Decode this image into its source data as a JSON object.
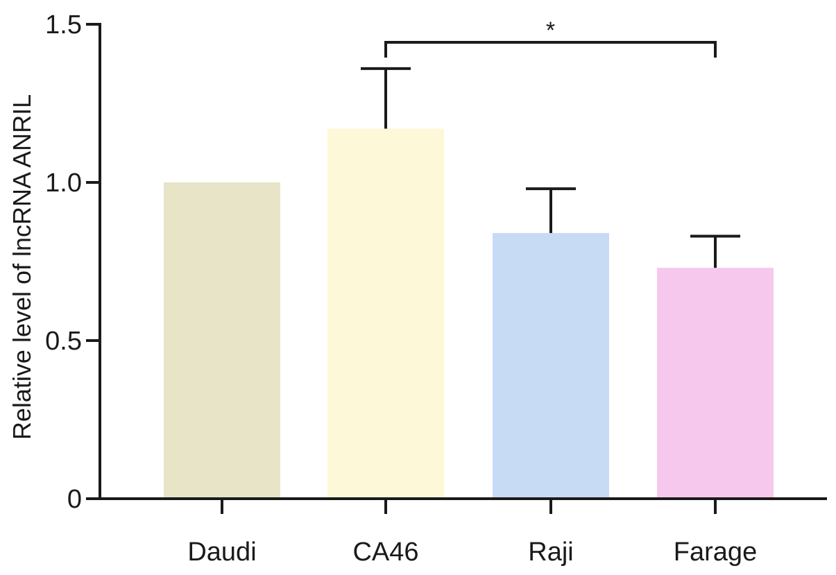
{
  "chart_data": {
    "type": "bar",
    "title": "",
    "xlabel": "",
    "ylabel": "Relative level of lncRNA ANRIL",
    "ylim": [
      0,
      1.5
    ],
    "yticks": [
      0,
      0.5,
      1.0,
      1.5
    ],
    "ytick_labels": [
      "0",
      "0.5",
      "1.0",
      "1.5"
    ],
    "categories": [
      "Daudi",
      "CA46",
      "Raji",
      "Farage"
    ],
    "values": [
      1.0,
      1.17,
      0.84,
      0.73
    ],
    "error": [
      0,
      0.19,
      0.14,
      0.1
    ],
    "colors": [
      "#e7e4c8",
      "#fcf8d8",
      "#c8dbf5",
      "#f7c8ee"
    ],
    "significance": [
      {
        "from": "CA46",
        "to": "Farage",
        "label": "*"
      }
    ],
    "grid": false,
    "legend": "none"
  }
}
